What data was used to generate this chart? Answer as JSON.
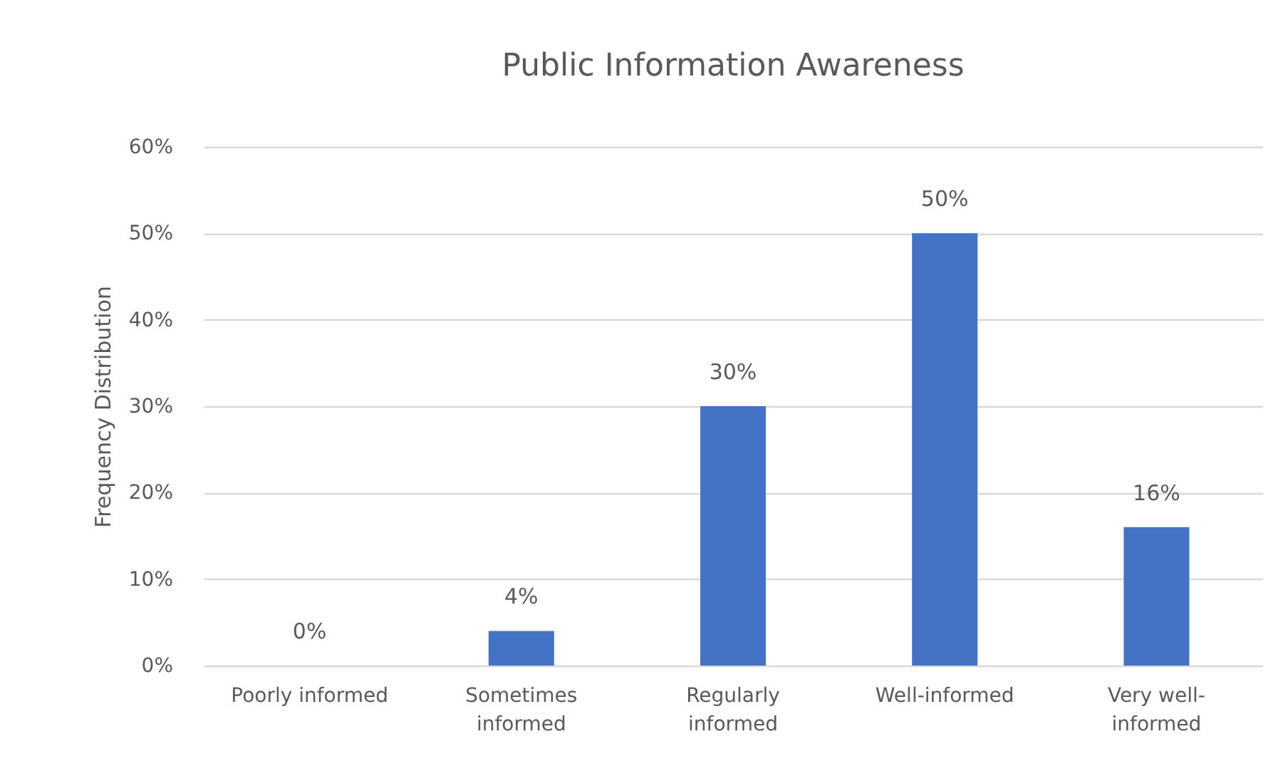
{
  "chart_data": {
    "type": "bar",
    "title": "Public Information Awareness",
    "ylabel": "Frequency Distribution",
    "categories": [
      "Poorly informed",
      "Sometimes informed",
      "Regularly informed",
      "Well-informed",
      "Very well-informed"
    ],
    "values": [
      0,
      4,
      30,
      50,
      16
    ],
    "color": "#4472c4",
    "value_labels": [
      "0%",
      "4%",
      "30%",
      "50%",
      "16%"
    ],
    "ylim": [
      0,
      60
    ],
    "yticks": [
      {
        "value": 0,
        "label": "0%"
      },
      {
        "value": 10,
        "label": "10%"
      },
      {
        "value": 20,
        "label": "20%"
      },
      {
        "value": 30,
        "label": "30%"
      },
      {
        "value": 40,
        "label": "40%"
      },
      {
        "value": 50,
        "label": "50%"
      },
      {
        "value": 60,
        "label": "60%"
      }
    ],
    "grid": "y"
  }
}
